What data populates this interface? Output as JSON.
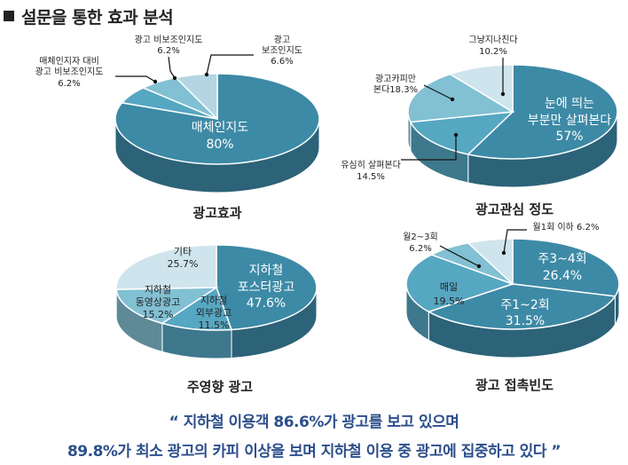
{
  "header": {
    "title": "설문을 통한 효과 분석"
  },
  "colors": {
    "dark": "#3d8aa6",
    "mid": "#56a7c2",
    "light": "#82c0d3",
    "pale": "#b4d6e2",
    "faint": "#cfe5ed",
    "quote": "#2d4f8c"
  },
  "chart_data": [
    {
      "type": "pie",
      "title": "광고효과",
      "slices": [
        {
          "label": "매체인지도",
          "value": 80
        },
        {
          "label": "매체인지자 대비 광고 비보조인지도",
          "value": 6.2
        },
        {
          "label": "광고 비보조인지도",
          "value": 6.2
        },
        {
          "label": "광고 보조인지도",
          "value": 6.6
        }
      ]
    },
    {
      "type": "pie",
      "title": "광고관심 정도",
      "slices": [
        {
          "label": "눈에 띄는 부분만 살펴본다",
          "value": 57
        },
        {
          "label": "유심히 살펴본다",
          "value": 14.5
        },
        {
          "label": "광고카피만 본다",
          "value": 18.3
        },
        {
          "label": "그냥지나친다",
          "value": 10.2
        }
      ]
    },
    {
      "type": "pie",
      "title": "주영향 광고",
      "slices": [
        {
          "label": "지하철 포스터광고",
          "value": 47.6
        },
        {
          "label": "지하철 외부광고",
          "value": 11.5
        },
        {
          "label": "지하철 동영상광고",
          "value": 15.2
        },
        {
          "label": "기타",
          "value": 25.7
        }
      ]
    },
    {
      "type": "pie",
      "title": "광고 접촉빈도",
      "slices": [
        {
          "label": "주3~4회",
          "value": 26.4
        },
        {
          "label": "주1~2회",
          "value": 31.5
        },
        {
          "label": "매일",
          "value": 19.5
        },
        {
          "label": "월2~3회",
          "value": 6.2
        },
        {
          "label": "월1회 이하",
          "value": 6.2
        }
      ]
    }
  ],
  "text_labels": [
    {
      "text": "광고 비보조인지도"
    },
    {
      "text": "6.2%"
    },
    {
      "text": "광고"
    },
    {
      "text": "보조인지도"
    },
    {
      "text": "6.6%"
    },
    {
      "text": "매체인지자 대비"
    },
    {
      "text": "광고 비보조인지도"
    },
    {
      "text": "6.2%"
    },
    {
      "text": "매체인지도"
    },
    {
      "text": "80%"
    },
    {
      "text": "그냥지나친다"
    },
    {
      "text": "10.2%"
    },
    {
      "text": "광고카피만"
    },
    {
      "text": "본다18.3%"
    },
    {
      "text": "눈에 띄는"
    },
    {
      "text": "부분만 살펴본다"
    },
    {
      "text": "57%"
    },
    {
      "text": "유심히 살펴본다"
    },
    {
      "text": "14.5%"
    },
    {
      "text": "기타"
    },
    {
      "text": "25.7%"
    },
    {
      "text": "지하철"
    },
    {
      "text": "포스터광고"
    },
    {
      "text": "47.6%"
    },
    {
      "text": "지하철"
    },
    {
      "text": "동영상광고"
    },
    {
      "text": "15.2%"
    },
    {
      "text": "지하철"
    },
    {
      "text": "외부광고"
    },
    {
      "text": "11.5%"
    },
    {
      "text": "월2~3회"
    },
    {
      "text": "6.2%"
    },
    {
      "text": "월1회 이하  6.2%"
    },
    {
      "text": "주3~4회"
    },
    {
      "text": "26.4%"
    },
    {
      "text": "매일"
    },
    {
      "text": "19.5%"
    },
    {
      "text": "주1~2회"
    },
    {
      "text": "31.5%"
    }
  ],
  "quote": {
    "line1": "“ 지하철 이용객 86.6%가 광고를 보고 있으며",
    "line2": "89.8%가 최소 광고의 카피 이상을 보며 지하철 이용 중 광고에 집중하고 있다 ”"
  }
}
